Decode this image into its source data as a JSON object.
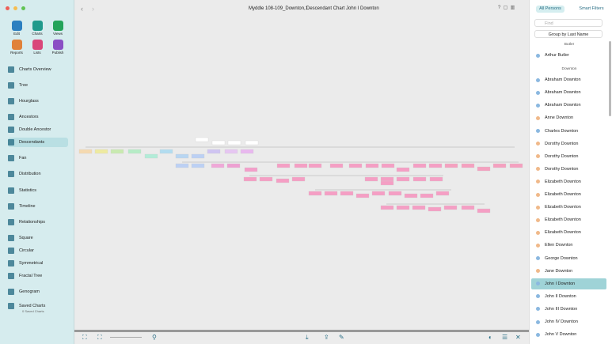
{
  "window": {
    "file": "Myddle 108-109_Downton,1",
    "chart_title": "Descendant Chart John  I Downton"
  },
  "toolbar": [
    "Edit",
    "Charts",
    "Views",
    "Reports",
    "Lists",
    "Publish"
  ],
  "sidebar": [
    "Charts Overview",
    "Tree",
    "Hourglass",
    "Ancestors",
    "Double Ancestor",
    "Descendants",
    "Fan",
    "Distribution",
    "Statistics",
    "Timeline",
    "Relationships",
    "Square",
    "Circular",
    "Symmetrical",
    "Fractal Tree",
    "Genogram",
    "Saved Charts"
  ],
  "saved_charts_note": "0 Saved Charts",
  "persons_panel": {
    "tabs": [
      "All Persons",
      "Smart Filters"
    ],
    "search_placeholder": "Find",
    "group_by": "Group by Last Name",
    "groups": [
      {
        "name": "Butler",
        "persons": [
          {
            "name": "Arthur  Butler",
            "color": "#8bb8e0"
          }
        ]
      },
      {
        "name": "Downton",
        "persons": [
          {
            "name": "Abraham Downton",
            "color": "#8bb8e0"
          },
          {
            "name": "Abraham Downton",
            "color": "#8bb8e0"
          },
          {
            "name": "Abraham Downton",
            "color": "#8bb8e0"
          },
          {
            "name": "Anne Downton",
            "color": "#f0b98a"
          },
          {
            "name": "Charles Downton",
            "color": "#8bb8e0"
          },
          {
            "name": "Dorothy Downton",
            "color": "#f0b98a"
          },
          {
            "name": "Dorothy Downton",
            "color": "#f0b98a"
          },
          {
            "name": "Dorothy Downton",
            "color": "#f0b98a"
          },
          {
            "name": "Elizabeth Downton",
            "color": "#f0b98a"
          },
          {
            "name": "Elizabeth Downton",
            "color": "#f0b98a"
          },
          {
            "name": "Elizabeth Downton",
            "color": "#f0b98a"
          },
          {
            "name": "Elizabeth Downton",
            "color": "#f0b98a"
          },
          {
            "name": "Elizabeth Downton",
            "color": "#f0b98a"
          },
          {
            "name": "Ellen Downton",
            "color": "#f0b98a"
          },
          {
            "name": "George Downton",
            "color": "#8bb8e0"
          },
          {
            "name": "Jane Downton",
            "color": "#f0b98a"
          },
          {
            "name": "John  I Downton",
            "color": "#8bb8e0",
            "selected": true
          },
          {
            "name": "John II Downton",
            "color": "#8bb8e0"
          },
          {
            "name": "John III Downton",
            "color": "#8bb8e0"
          },
          {
            "name": "John IV Downton",
            "color": "#8bb8e0"
          },
          {
            "name": "John V Downton",
            "color": "#8bb8e0"
          }
        ]
      }
    ]
  }
}
